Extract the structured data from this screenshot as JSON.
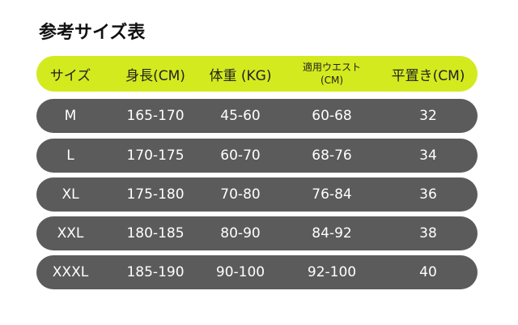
{
  "title": "参考サイズ表",
  "colors": {
    "header": "#d3ea1e",
    "row": "#5b5b5b"
  },
  "headers": [
    "サイズ",
    "身長(CM)",
    "体重 (KG)",
    "適用ウエスト(CM)",
    "平置き(CM)"
  ],
  "header_waist": {
    "line1": "適用ウエスト",
    "line2": "(CM)"
  },
  "rows": [
    [
      "M",
      "165-170",
      "45-60",
      "60-68",
      "32"
    ],
    [
      "L",
      "170-175",
      "60-70",
      "68-76",
      "34"
    ],
    [
      "XL",
      "175-180",
      "70-80",
      "76-84",
      "36"
    ],
    [
      "XXL",
      "180-185",
      "80-90",
      "84-92",
      "38"
    ],
    [
      "XXXL",
      "185-190",
      "90-100",
      "92-100",
      "40"
    ]
  ]
}
